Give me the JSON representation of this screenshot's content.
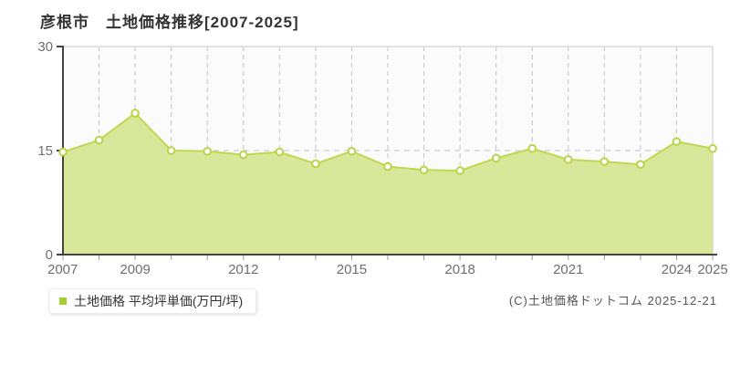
{
  "page": {
    "title": "彦根市　土地価格推移[2007-2025]",
    "copyright": "(C)土地価格ドットコム 2025-12-21"
  },
  "legend": {
    "label": "土地価格 平均坪単価(万円/坪)",
    "marker_color": "#a6cc35"
  },
  "chart_data": {
    "type": "area",
    "title": "彦根市 土地価格推移[2007-2025]",
    "series_name": "土地価格 平均坪単価(万円/坪)",
    "x": [
      2007,
      2008,
      2009,
      2010,
      2011,
      2012,
      2013,
      2014,
      2015,
      2016,
      2017,
      2018,
      2019,
      2020,
      2021,
      2022,
      2023,
      2024,
      2025
    ],
    "values": [
      14.8,
      16.5,
      20.4,
      15.0,
      14.9,
      14.4,
      14.8,
      13.1,
      14.9,
      12.7,
      12.2,
      12.1,
      13.9,
      15.3,
      13.7,
      13.4,
      13.0,
      16.3,
      15.3
    ],
    "ylabel": "万円/坪",
    "xlabel": "",
    "ylim": [
      0,
      30
    ],
    "yticks": [
      0,
      15,
      30
    ],
    "xtick_labels": [
      "2007",
      "2009",
      "2012",
      "2015",
      "2018",
      "2021",
      "2024",
      "2025"
    ],
    "grid": "vertical dashed at every year, horizontal dashed at 15",
    "legend_position": "bottom-left outside plot",
    "colors": {
      "area_fill": "#d9e79a",
      "line": "#bdd94f",
      "marker_fill": "#ffffff",
      "marker_stroke": "#b8d54a",
      "grid": "#c3c3c3",
      "plot_border": "#e2e2e2",
      "plot_bg": "#fbfbfb",
      "axis": "#444444",
      "tick": "#999999",
      "tick_label": "#6e6e6e"
    }
  }
}
